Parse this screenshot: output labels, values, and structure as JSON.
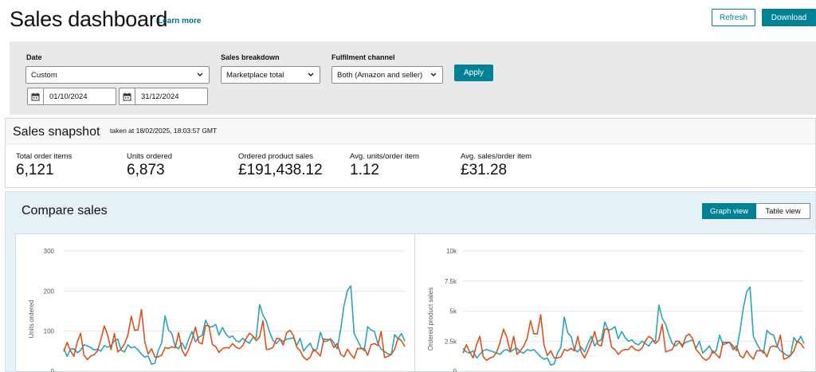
{
  "header": {
    "title": "Sales dashboard",
    "learn_more": "Learn more",
    "refresh_label": "Refresh",
    "download_label": "Download"
  },
  "filters": {
    "date_label": "Date",
    "date_value": "Custom",
    "start_date": "01/10/2024",
    "end_date": "31/12/2024",
    "breakdown_label": "Sales breakdown",
    "breakdown_value": "Marketplace total",
    "channel_label": "Fulfilment channel",
    "channel_value": "Both (Amazon and seller)",
    "apply_label": "Apply"
  },
  "snapshot": {
    "title": "Sales snapshot",
    "taken": "taken at 18/02/2025, 18:03:57 GMT",
    "metrics": [
      {
        "label": "Total order items",
        "value": "6,121"
      },
      {
        "label": "Units ordered",
        "value": "6,873"
      },
      {
        "label": "Ordered product sales",
        "value": "£191,438.12"
      },
      {
        "label": "Avg. units/order item",
        "value": "1.12"
      },
      {
        "label": "Avg. sales/order item",
        "value": "£31.28"
      }
    ]
  },
  "compare": {
    "title": "Compare sales",
    "graph_view": "Graph view",
    "table_view": "Table view"
  },
  "colors": {
    "accent": "#008296",
    "series_teal": "#2aa5b4",
    "series_orange": "#d9531e"
  },
  "chart_data": [
    {
      "type": "line",
      "ylabel": "Units ordered",
      "ylim": [
        0,
        300
      ],
      "yticks": [
        "300",
        "200",
        "100",
        "0"
      ],
      "series": [
        {
          "values": [
            57,
            37,
            55,
            56,
            46,
            52,
            66,
            63,
            59,
            53,
            55,
            50,
            64,
            60,
            64,
            76,
            80,
            52,
            48,
            66,
            58,
            61,
            53,
            43,
            35,
            38,
            17,
            20,
            52,
            71,
            138,
            103,
            94,
            62,
            56,
            71,
            55,
            80,
            99,
            73,
            85,
            89,
            127,
            110,
            111,
            117,
            90,
            109,
            93,
            84,
            88,
            76,
            73,
            82,
            75,
            70,
            84,
            83,
            166,
            140,
            124,
            97,
            76,
            69,
            79,
            74,
            80,
            81,
            84,
            64,
            82,
            50,
            61,
            70,
            50,
            55,
            97,
            74,
            75,
            81,
            71,
            56,
            104,
            164,
            201,
            213,
            94,
            77,
            59,
            51,
            111,
            103,
            99,
            70,
            55,
            49,
            43,
            42,
            91,
            81,
            94,
            75
          ]
        },
        {
          "values": [
            49,
            72,
            51,
            37,
            73,
            95,
            40,
            29,
            38,
            41,
            51,
            79,
            113,
            90,
            54,
            94,
            48,
            55,
            68,
            90,
            137,
            102,
            103,
            154,
            74,
            43,
            56,
            35,
            36,
            40,
            59,
            57,
            61,
            58,
            96,
            53,
            38,
            55,
            79,
            110,
            72,
            68,
            114,
            113,
            67,
            61,
            47,
            56,
            59,
            58,
            69,
            60,
            56,
            64,
            81,
            95,
            88,
            76,
            86,
            126,
            54,
            55,
            60,
            82,
            81,
            65,
            96,
            102,
            89,
            60,
            51,
            35,
            28,
            35,
            55,
            47,
            38,
            80,
            79,
            78,
            59,
            69,
            42,
            36,
            55,
            42,
            32,
            57,
            56,
            57,
            40,
            66,
            69,
            64,
            99,
            34,
            37,
            42,
            55,
            82,
            76,
            61
          ]
        }
      ]
    },
    {
      "type": "line",
      "ylabel": "Ordered product sales",
      "ylim": [
        0,
        10000
      ],
      "yticks": [
        "10k",
        "7.5k",
        "5k",
        "2.5k",
        "0"
      ],
      "series": [
        {
          "values": [
            1900,
            1600,
            1500,
            1700,
            1100,
            1400,
            1700,
            1800,
            1700,
            1600,
            1500,
            1400,
            1700,
            1800,
            1600,
            1800,
            1900,
            1600,
            1500,
            1800,
            1700,
            1800,
            1500,
            1200,
            1000,
            1100,
            500,
            600,
            1500,
            2000,
            4500,
            3200,
            2900,
            1800,
            1600,
            2000,
            1600,
            2300,
            2900,
            2100,
            2500,
            2600,
            4100,
            3400,
            3500,
            3700,
            2700,
            3300,
            2800,
            2500,
            2600,
            2300,
            2200,
            2500,
            2300,
            2100,
            2500,
            2500,
            5500,
            4400,
            3900,
            3000,
            2300,
            2100,
            2400,
            2200,
            2400,
            2500,
            2600,
            1900,
            2500,
            1500,
            1800,
            2100,
            1500,
            1700,
            3000,
            2200,
            2300,
            2400,
            2100,
            1700,
            3300,
            5200,
            6600,
            7000,
            2900,
            2300,
            1800,
            1500,
            3400,
            3100,
            3000,
            2100,
            1700,
            1500,
            1300,
            1300,
            2800,
            2400,
            2900,
            2300
          ]
        },
        {
          "values": [
            1500,
            2200,
            1600,
            1100,
            2200,
            2900,
            1200,
            900,
            1100,
            1200,
            1600,
            2400,
            3500,
            2800,
            1600,
            2900,
            1400,
            1700,
            2100,
            2700,
            4200,
            3100,
            3100,
            4700,
            2200,
            1300,
            1700,
            1100,
            1100,
            1200,
            1800,
            1700,
            1900,
            1700,
            2900,
            1600,
            1100,
            1700,
            2400,
            3300,
            2200,
            2100,
            3500,
            3500,
            2000,
            1800,
            1400,
            1700,
            1800,
            1800,
            2100,
            1800,
            1700,
            1900,
            2500,
            2900,
            2700,
            2300,
            2600,
            3900,
            1600,
            1700,
            1800,
            2500,
            2500,
            2000,
            2900,
            3100,
            2700,
            1800,
            1500,
            1100,
            900,
            1100,
            1700,
            1400,
            1100,
            2400,
            2400,
            2400,
            1800,
            2100,
            1300,
            1100,
            1700,
            1300,
            1000,
            1700,
            1700,
            1700,
            1200,
            2000,
            2100,
            2000,
            3000,
            1000,
            1100,
            1300,
            1700,
            2500,
            2300,
            1900
          ]
        }
      ]
    }
  ]
}
